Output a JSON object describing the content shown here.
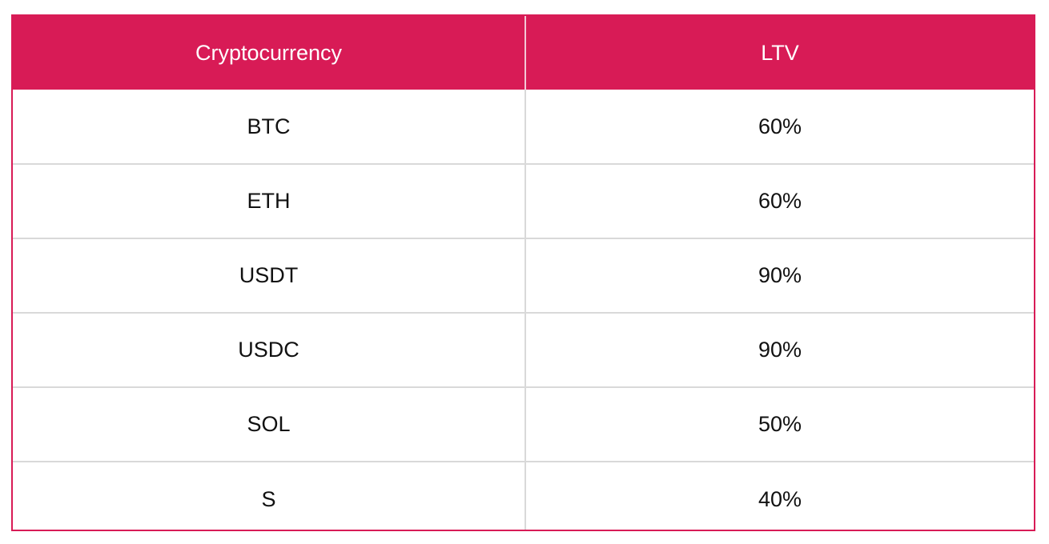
{
  "table": {
    "columns": [
      "Cryptocurrency",
      "LTV"
    ],
    "rows": [
      {
        "crypto": "BTC",
        "ltv": "60%"
      },
      {
        "crypto": "ETH",
        "ltv": "60%"
      },
      {
        "crypto": "USDT",
        "ltv": "90%"
      },
      {
        "crypto": "USDC",
        "ltv": "90%"
      },
      {
        "crypto": "SOL",
        "ltv": "50%"
      },
      {
        "crypto": "S",
        "ltv": "40%"
      }
    ]
  },
  "colors": {
    "header_bg": "#d81b56",
    "header_text": "#ffffff",
    "border": "#d81b56",
    "grid": "#d9d9d9"
  }
}
